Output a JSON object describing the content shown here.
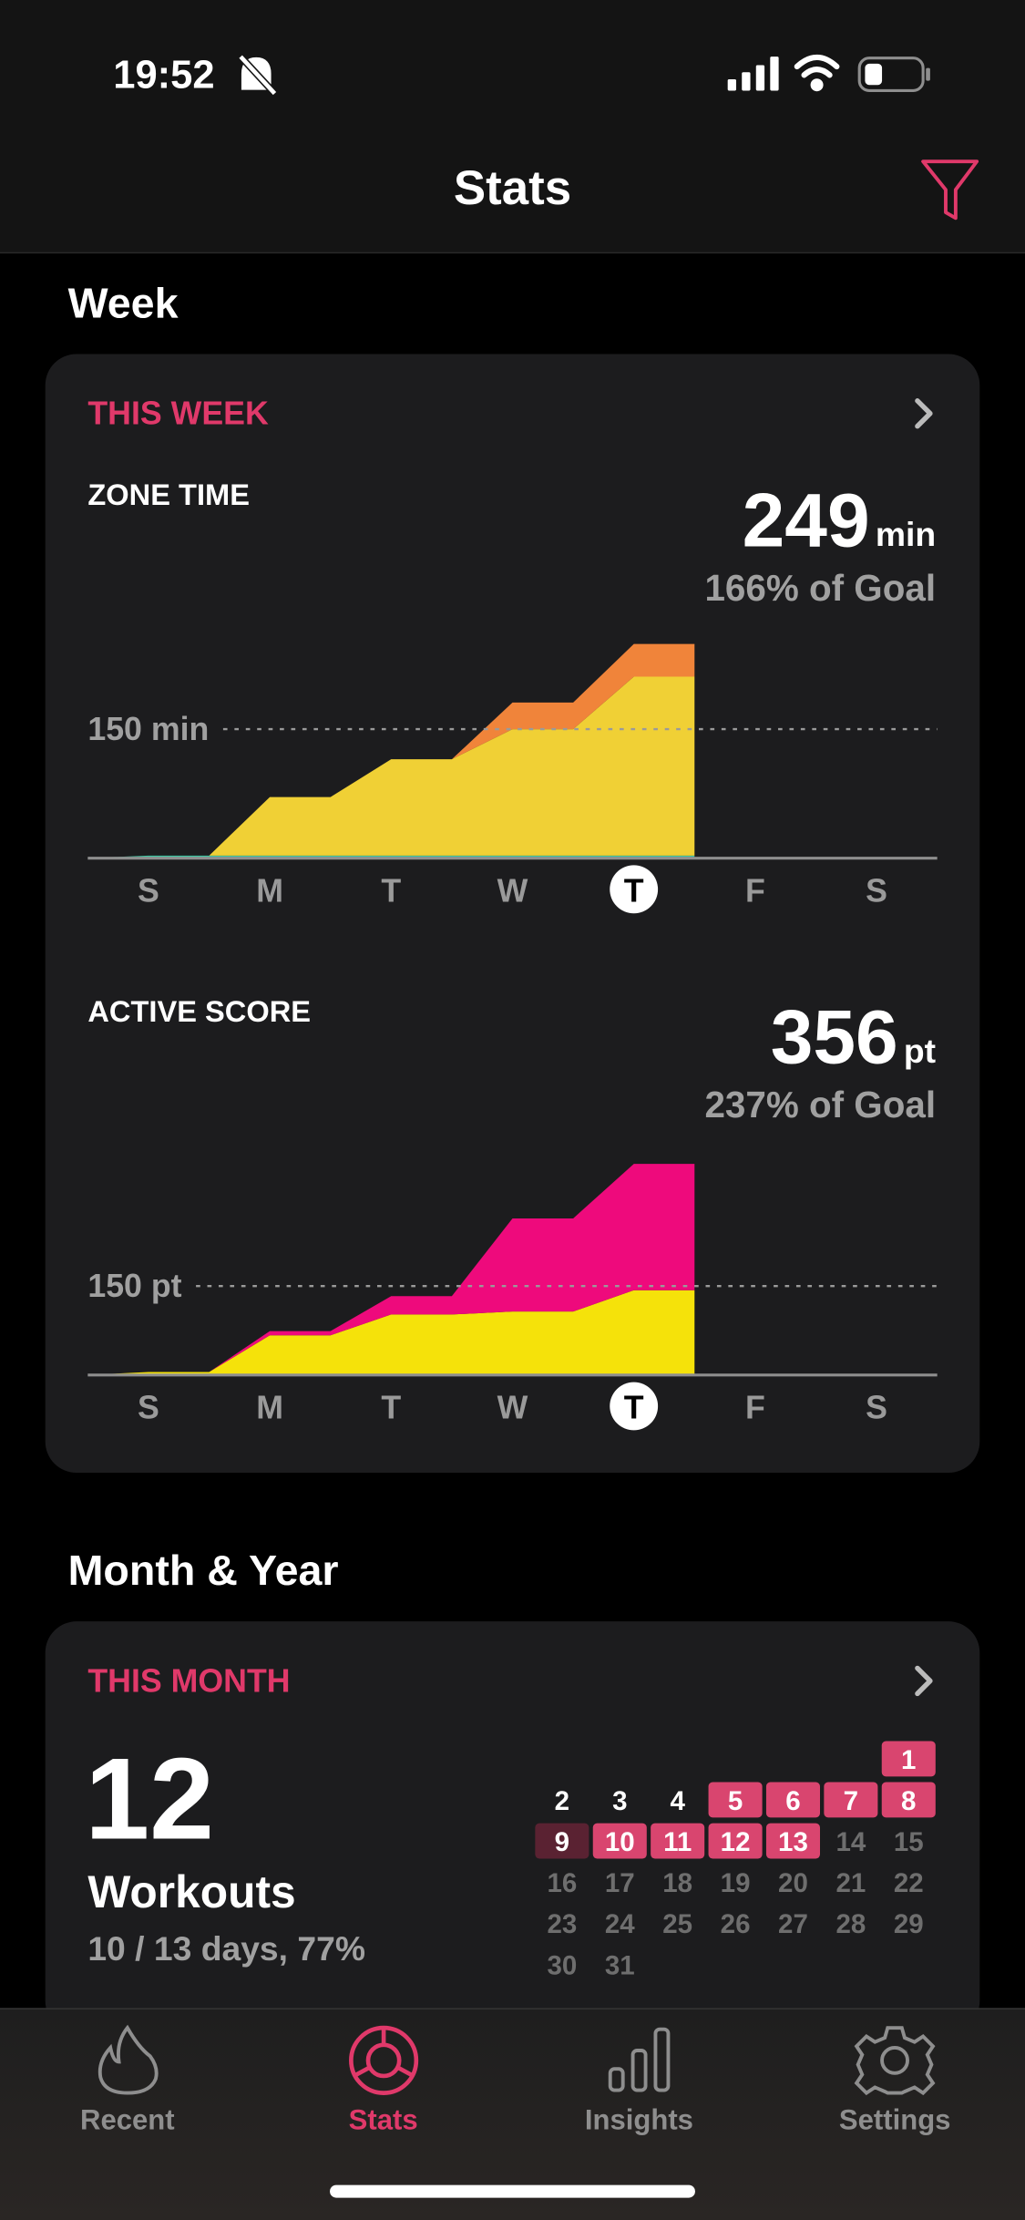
{
  "status_bar": {
    "time": "19:52"
  },
  "header": {
    "title": "Stats"
  },
  "week": {
    "heading": "Week",
    "card_label": "THIS WEEK"
  },
  "chart_data": [
    {
      "type": "area",
      "title": "ZONE TIME",
      "total": 249,
      "unit": "min",
      "goal_text": "166% of Goal",
      "categories": [
        "S",
        "M",
        "T",
        "W",
        "T",
        "F",
        "S"
      ],
      "today": 4,
      "x": [
        0,
        0.5,
        1,
        1.5,
        2,
        2.5,
        3,
        3.5,
        4,
        4.5,
        5
      ],
      "xlim": [
        0,
        7
      ],
      "ylim": [
        0,
        275
      ],
      "yticks": [
        {
          "value": 150,
          "label": "150 min"
        }
      ],
      "series": [
        {
          "color": "#3cc4a0",
          "values": [
            0,
            3,
            3,
            3,
            3,
            3,
            3,
            3,
            3,
            3,
            3
          ]
        },
        {
          "color": "#f0d035",
          "values": [
            0,
            0,
            0,
            68,
            68,
            112,
            112,
            147,
            147,
            208,
            208
          ]
        },
        {
          "color": "#f0843a",
          "values": [
            0,
            0,
            0,
            0,
            0,
            0,
            0,
            31,
            31,
            38,
            38
          ]
        }
      ]
    },
    {
      "type": "area",
      "title": "ACTIVE SCORE",
      "total": 356,
      "unit": "pt",
      "goal_text": "237% of Goal",
      "categories": [
        "S",
        "M",
        "T",
        "W",
        "T",
        "F",
        "S"
      ],
      "today": 4,
      "x": [
        0,
        0.5,
        1,
        1.5,
        2,
        2.5,
        3,
        3.5,
        4,
        4.5,
        5
      ],
      "xlim": [
        0,
        7
      ],
      "ylim": [
        0,
        370
      ],
      "yticks": [
        {
          "value": 150,
          "label": "150 pt"
        }
      ],
      "series": [
        {
          "color": "#f5e20a",
          "values": [
            0,
            5,
            5,
            67,
            67,
            102,
            102,
            107,
            107,
            143,
            143
          ]
        },
        {
          "color": "#ee0a7c",
          "values": [
            0,
            0,
            0,
            7,
            7,
            31,
            31,
            157,
            157,
            213,
            213
          ]
        }
      ]
    }
  ],
  "month": {
    "heading": "Month & Year",
    "card_label": "THIS MONTH",
    "count": 12,
    "count_label": "Workouts",
    "summary": "10 / 13 days, 77%",
    "first_weekday": 6,
    "days": [
      {
        "day": 1,
        "state": "workout"
      },
      {
        "day": 2,
        "state": "past"
      },
      {
        "day": 3,
        "state": "past"
      },
      {
        "day": 4,
        "state": "past"
      },
      {
        "day": 5,
        "state": "workout"
      },
      {
        "day": 6,
        "state": "workout"
      },
      {
        "day": 7,
        "state": "workout"
      },
      {
        "day": 8,
        "state": "workout"
      },
      {
        "day": 9,
        "state": "partial"
      },
      {
        "day": 10,
        "state": "workout"
      },
      {
        "day": 11,
        "state": "workout"
      },
      {
        "day": 12,
        "state": "workout"
      },
      {
        "day": 13,
        "state": "workout"
      },
      {
        "day": 14,
        "state": "future"
      },
      {
        "day": 15,
        "state": "future"
      },
      {
        "day": 16,
        "state": "future"
      },
      {
        "day": 17,
        "state": "future"
      },
      {
        "day": 18,
        "state": "future"
      },
      {
        "day": 19,
        "state": "future"
      },
      {
        "day": 20,
        "state": "future"
      },
      {
        "day": 21,
        "state": "future"
      },
      {
        "day": 22,
        "state": "future"
      },
      {
        "day": 23,
        "state": "future"
      },
      {
        "day": 24,
        "state": "future"
      },
      {
        "day": 25,
        "state": "future"
      },
      {
        "day": 26,
        "state": "future"
      },
      {
        "day": 27,
        "state": "future"
      },
      {
        "day": 28,
        "state": "future"
      },
      {
        "day": 29,
        "state": "future"
      },
      {
        "day": 30,
        "state": "future"
      },
      {
        "day": 31,
        "state": "future"
      }
    ]
  },
  "tabs": [
    {
      "label": "Recent",
      "active": false
    },
    {
      "label": "Stats",
      "active": true
    },
    {
      "label": "Insights",
      "active": false
    },
    {
      "label": "Settings",
      "active": false
    }
  ]
}
